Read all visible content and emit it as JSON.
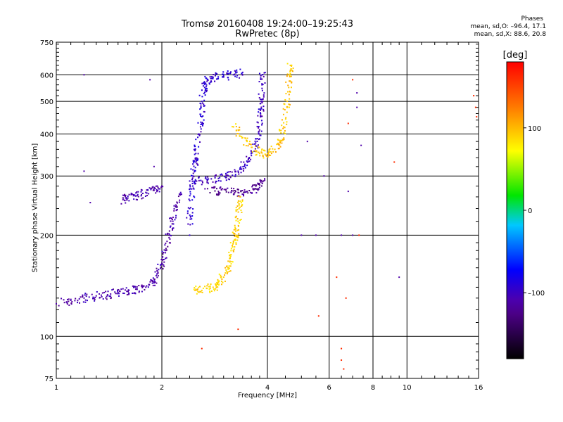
{
  "header": {
    "title_line1": "Tromsø 20160408 19:24:00–19:25:43",
    "title_line2": "RwPretec (8p)"
  },
  "stats": {
    "title": "Phases",
    "line_o": "mean, sd,O: –96.4, 17.1",
    "line_x": "mean, sd,X:  88.6, 20.8"
  },
  "colorbar": {
    "label": "[deg]",
    "ticks": [
      {
        "value": 100,
        "label": "100"
      },
      {
        "value": 0,
        "label": "0"
      },
      {
        "value": -100,
        "label": "–100"
      }
    ]
  },
  "chart_data": {
    "type": "scatter",
    "title": "Tromsø 20160408 19:24:00–19:25:43",
    "subtitle": "RwPretec (8p)",
    "xlabel": "Frequency [MHz]",
    "ylabel": "Stationary phase Virtual Height [km]",
    "xscale": "log",
    "yscale": "log",
    "xlim": [
      1,
      16
    ],
    "ylim": [
      75,
      750
    ],
    "xticks": [
      1,
      2,
      4,
      6,
      8,
      10,
      16
    ],
    "yticks": [
      75,
      100,
      200,
      300,
      400,
      500,
      600,
      750
    ],
    "grid": true,
    "color_scale": {
      "variable": "phase",
      "unit": "deg",
      "range": [
        -180,
        180
      ],
      "colormap": "rainbow"
    },
    "series": [
      {
        "trace": "lower E/F1 rise",
        "phase_deg": -110,
        "points": [
          [
            1.0,
            125
          ],
          [
            1.1,
            128
          ],
          [
            1.2,
            130
          ],
          [
            1.3,
            132
          ],
          [
            1.4,
            133
          ],
          [
            1.5,
            135
          ],
          [
            1.6,
            136
          ],
          [
            1.7,
            138
          ],
          [
            1.8,
            140
          ],
          [
            1.9,
            145
          ],
          [
            1.95,
            155
          ],
          [
            2.0,
            165
          ],
          [
            2.05,
            180
          ],
          [
            2.1,
            200
          ],
          [
            2.15,
            220
          ],
          [
            2.2,
            245
          ],
          [
            2.25,
            265
          ]
        ]
      },
      {
        "trace": "F1 band",
        "phase_deg": -110,
        "points": [
          [
            1.55,
            255
          ],
          [
            1.6,
            258
          ],
          [
            1.7,
            262
          ],
          [
            1.8,
            268
          ],
          [
            1.9,
            272
          ],
          [
            2.0,
            280
          ]
        ]
      },
      {
        "trace": "O-mode vertical column",
        "phase_deg": -95,
        "points": [
          [
            2.4,
            200
          ],
          [
            2.4,
            240
          ],
          [
            2.45,
            280
          ],
          [
            2.45,
            300
          ],
          [
            2.5,
            330
          ],
          [
            2.5,
            350
          ],
          [
            2.55,
            400
          ],
          [
            2.6,
            450
          ],
          [
            2.6,
            500
          ],
          [
            2.65,
            550
          ],
          [
            2.7,
            580
          ],
          [
            2.8,
            590
          ],
          [
            3.0,
            595
          ],
          [
            3.2,
            600
          ],
          [
            3.4,
            610
          ]
        ]
      },
      {
        "trace": "O-mode F2 curve",
        "phase_deg": -100,
        "points": [
          [
            2.5,
            290
          ],
          [
            2.7,
            292
          ],
          [
            2.9,
            295
          ],
          [
            3.1,
            300
          ],
          [
            3.3,
            310
          ],
          [
            3.45,
            325
          ],
          [
            3.6,
            345
          ],
          [
            3.7,
            370
          ],
          [
            3.78,
            400
          ],
          [
            3.82,
            450
          ],
          [
            3.84,
            500
          ],
          [
            3.86,
            560
          ],
          [
            3.88,
            600
          ]
        ]
      },
      {
        "trace": "O-mode F2 lower branch",
        "phase_deg": -120,
        "points": [
          [
            2.7,
            275
          ],
          [
            2.9,
            270
          ],
          [
            3.1,
            268
          ],
          [
            3.3,
            268
          ],
          [
            3.5,
            270
          ],
          [
            3.7,
            275
          ],
          [
            3.8,
            282
          ],
          [
            3.9,
            290
          ]
        ]
      },
      {
        "trace": "X-mode lower",
        "phase_deg": 90,
        "points": [
          [
            2.5,
            138
          ],
          [
            2.6,
            137
          ],
          [
            2.8,
            140
          ],
          [
            2.9,
            145
          ],
          [
            3.0,
            150
          ],
          [
            3.1,
            160
          ],
          [
            3.15,
            175
          ],
          [
            3.2,
            190
          ],
          [
            3.25,
            200
          ],
          [
            3.3,
            220
          ],
          [
            3.32,
            240
          ],
          [
            3.35,
            260
          ]
        ]
      },
      {
        "trace": "X-mode F2 curve",
        "phase_deg": 95,
        "points": [
          [
            3.2,
            420
          ],
          [
            3.4,
            390
          ],
          [
            3.6,
            365
          ],
          [
            3.8,
            350
          ],
          [
            4.0,
            350
          ],
          [
            4.2,
            360
          ],
          [
            4.35,
            380
          ],
          [
            4.45,
            420
          ],
          [
            4.55,
            480
          ],
          [
            4.6,
            550
          ],
          [
            4.62,
            600
          ],
          [
            4.65,
            640
          ]
        ]
      },
      {
        "trace": "scattered echoes",
        "phase_deg": -110,
        "points": [
          [
            1.2,
            600
          ],
          [
            1.2,
            310
          ],
          [
            1.25,
            250
          ],
          [
            1.85,
            580
          ],
          [
            1.9,
            320
          ],
          [
            5.0,
            200
          ],
          [
            5.5,
            200
          ],
          [
            6.5,
            200
          ],
          [
            7.0,
            200
          ],
          [
            7.2,
            530
          ],
          [
            7.2,
            480
          ],
          [
            7.4,
            370
          ],
          [
            6.8,
            270
          ],
          [
            9.5,
            150
          ],
          [
            5.8,
            300
          ],
          [
            5.2,
            380
          ]
        ]
      },
      {
        "trace": "scattered echoes (warm)",
        "phase_deg": 160,
        "points": [
          [
            2.6,
            92
          ],
          [
            6.5,
            92
          ],
          [
            6.5,
            85
          ],
          [
            6.6,
            80
          ],
          [
            7.0,
            580
          ],
          [
            6.8,
            430
          ],
          [
            7.3,
            200
          ],
          [
            6.3,
            150
          ],
          [
            6.7,
            130
          ],
          [
            5.6,
            115
          ],
          [
            15.5,
            520
          ],
          [
            15.7,
            480
          ],
          [
            15.8,
            450
          ],
          [
            9.2,
            330
          ],
          [
            3.3,
            105
          ]
        ]
      }
    ]
  }
}
